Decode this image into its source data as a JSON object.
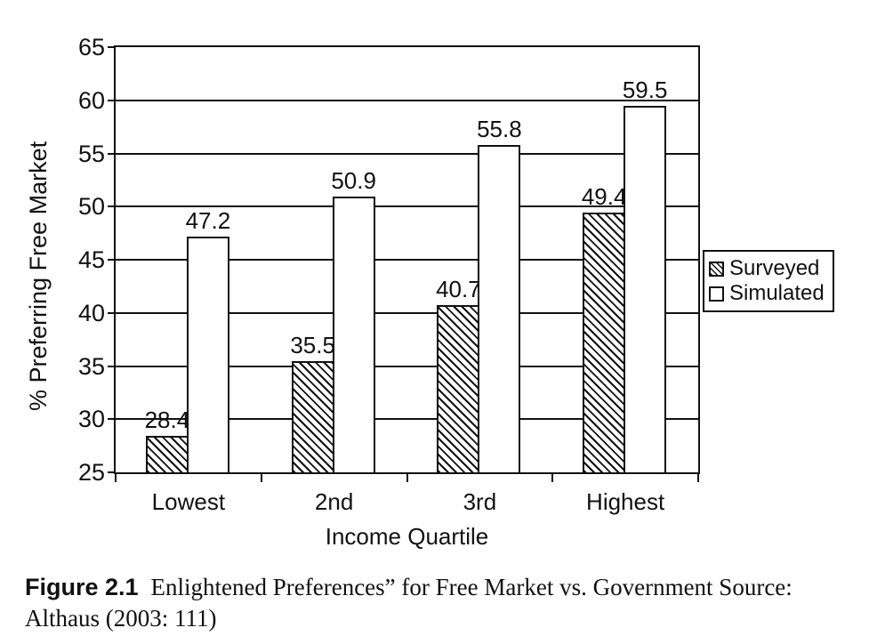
{
  "figure": {
    "label": "Figure 2.1",
    "caption": "Enlightened Preferences” for Free Market vs. Government Source: Althaus (2003: 111)"
  },
  "chart_data": {
    "type": "bar",
    "categories": [
      "Lowest",
      "2nd",
      "3rd",
      "Highest"
    ],
    "series": [
      {
        "name": "Surveyed",
        "fill": "hatch",
        "values": [
          28.4,
          35.5,
          40.7,
          49.4
        ]
      },
      {
        "name": "Simulated",
        "fill": "white",
        "values": [
          47.2,
          50.9,
          55.8,
          59.5
        ]
      }
    ],
    "title": "",
    "xlabel": "Income Quartile",
    "ylabel": "% Preferring Free Market",
    "ylim": [
      25,
      65
    ],
    "ytick_step": 5,
    "grid": true,
    "data_labels": true,
    "legend_position": "right-outside",
    "colors": {
      "ink": "#111111",
      "background": "#ffffff"
    }
  }
}
